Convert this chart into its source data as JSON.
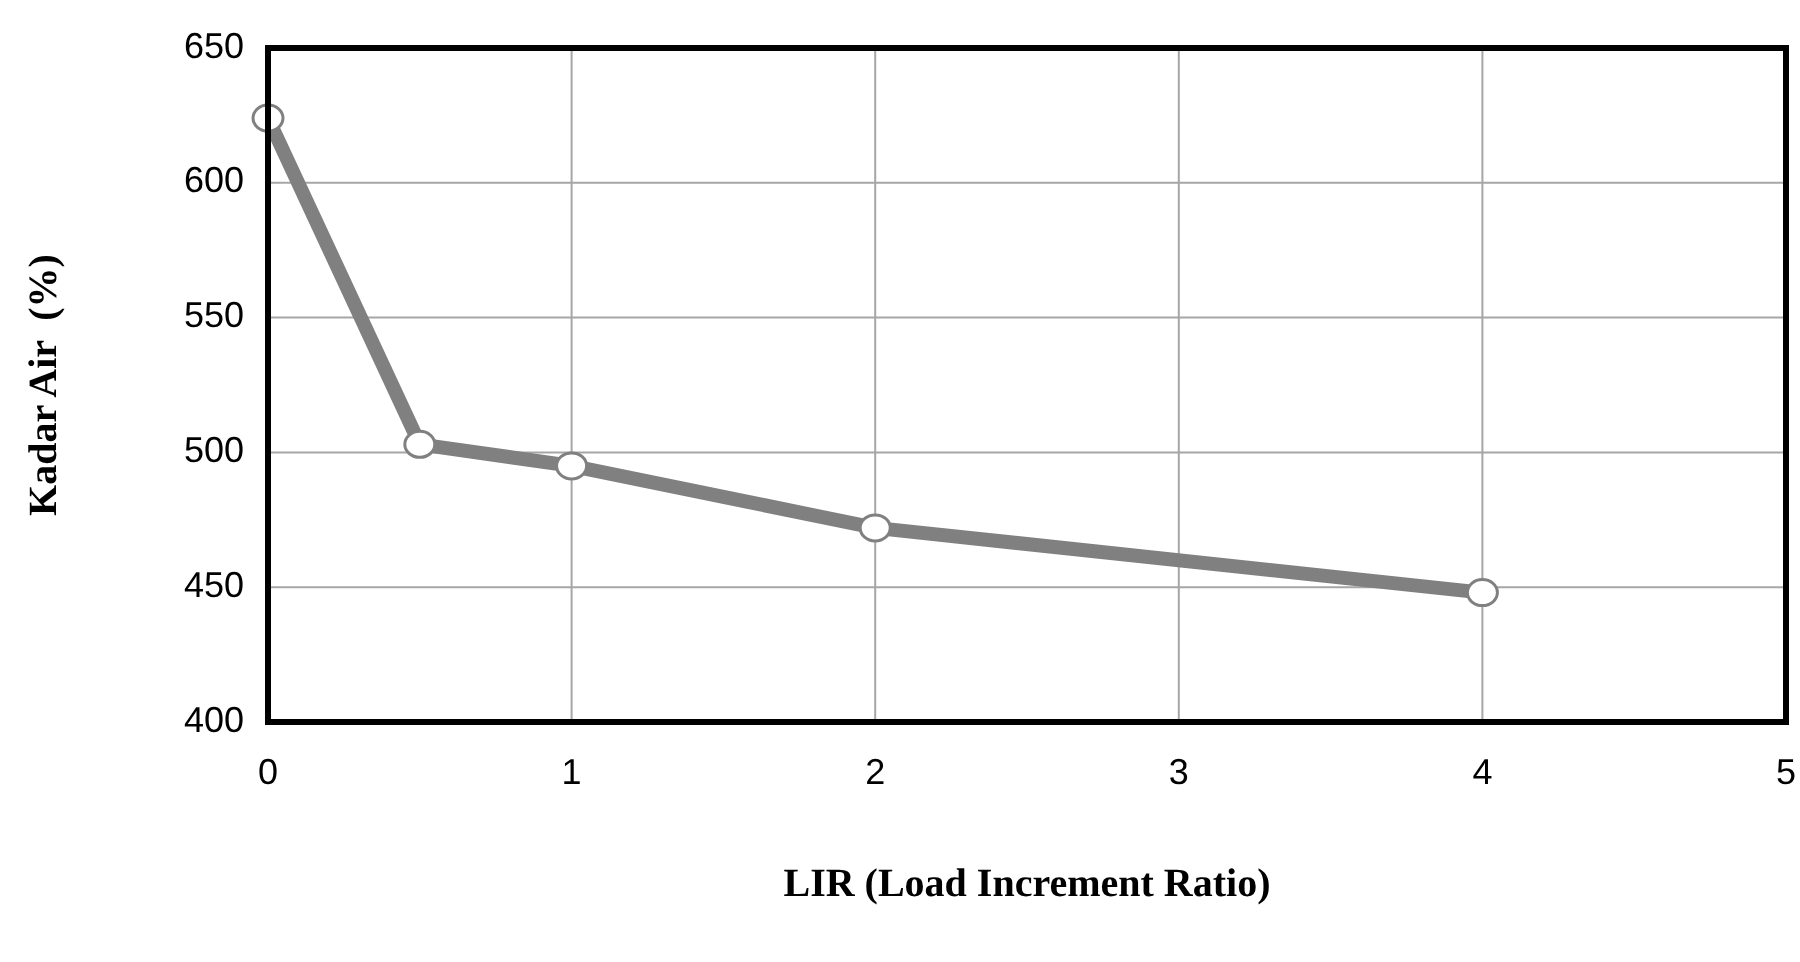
{
  "chart_data": {
    "type": "line",
    "xlabel": "LIR (Load Increment Ratio)",
    "ylabel": "Kadar Air  (%)",
    "x": [
      0,
      0.5,
      1,
      2,
      4
    ],
    "series": [
      {
        "color": "#808080",
        "values": [
          624,
          503,
          495,
          472,
          448
        ]
      }
    ],
    "xlim": [
      0,
      5
    ],
    "xticks": [
      0,
      1,
      2,
      3,
      4,
      5
    ],
    "ylim": [
      400,
      650
    ],
    "yticks": [
      400,
      450,
      500,
      550,
      600,
      650
    ],
    "grid": true,
    "marker": "circle",
    "line_style": "solid"
  }
}
